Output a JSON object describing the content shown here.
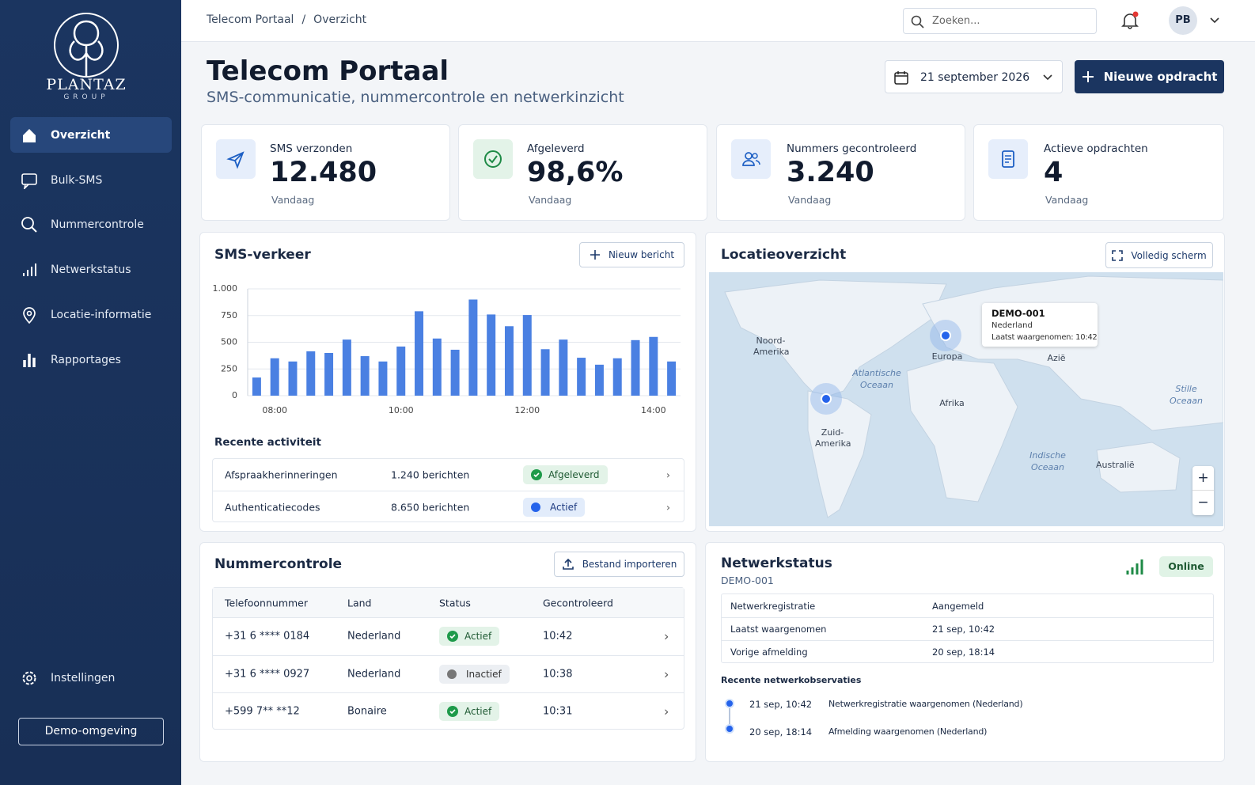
{
  "sidebar": {
    "brand": "PLANTAZ",
    "brand_sub": "GROUP",
    "nav": [
      "Overzicht",
      "Bulk-SMS",
      "Nummercontrole",
      "Netwerkstatus",
      "Locatie-informatie",
      "Rapportages"
    ],
    "settings": "Instellingen",
    "environment": "Demo-omgeving"
  },
  "topbar": {
    "breadcrumb": [
      "Telecom Portaal",
      "Overzicht"
    ],
    "breadcrumb_separator": "/",
    "search_placeholder": "Zoeken...",
    "user_initials": "PB"
  },
  "header": {
    "title": "Telecom Portaal",
    "subtitle": "SMS-communicatie, nummercontrole en netwerkinzicht",
    "date": "21 september 2026",
    "new_button": "Nieuwe opdracht"
  },
  "kpis": [
    {
      "label": "SMS verzonden",
      "value": "12.480",
      "period": "Vandaag"
    },
    {
      "label": "Afgeleverd",
      "value": "98,6%",
      "period": "Vandaag"
    },
    {
      "label": "Nummers gecontroleerd",
      "value": "3.240",
      "period": "Vandaag"
    },
    {
      "label": "Actieve opdrachten",
      "value": "4",
      "period": "Vandaag"
    }
  ],
  "sms_traffic": {
    "title": "SMS-verkeer",
    "button": "Nieuw bericht",
    "chart": {
      "type": "bar",
      "categories": [
        null,
        "08:00",
        null,
        null,
        null,
        null,
        null,
        null,
        "10:00",
        null,
        null,
        null,
        null,
        null,
        null,
        "12:00",
        null,
        null,
        null,
        null,
        null,
        null,
        "14:00",
        null
      ],
      "values": [
        170,
        350,
        320,
        415,
        400,
        525,
        370,
        320,
        460,
        790,
        535,
        430,
        900,
        760,
        650,
        755,
        435,
        525,
        355,
        290,
        350,
        520,
        550,
        320
      ],
      "color": "#4a80e2",
      "ylim": [
        0,
        1000
      ],
      "yticks": [
        0,
        250,
        500,
        750,
        {
          "value": 1000,
          "label": "1.000"
        }
      ],
      "grid": true
    },
    "recent_title": "Recente activiteit",
    "recent": [
      {
        "name": "Afspraakherinneringen",
        "count": "1.240 berichten",
        "status": "Afgeleverd"
      },
      {
        "name": "Authenticatiecodes",
        "count": "8.650 berichten",
        "status": "Actief"
      }
    ]
  },
  "location": {
    "title": "Locatieoverzicht",
    "button": "Volledig scherm",
    "labels": [
      [
        "Noord-",
        "Amerika"
      ],
      [
        "Europa"
      ],
      [
        "Azië"
      ],
      [
        "Afrika"
      ],
      [
        "Zuid-",
        "Amerika"
      ],
      [
        "Australië"
      ]
    ],
    "oceans": [
      [
        "Atlantische",
        "Oceaan"
      ],
      [
        "Stille",
        "Oceaan"
      ],
      [
        "Indische",
        "Oceaan"
      ]
    ],
    "tooltip": {
      "device": "DEMO-001",
      "country": "Nederland",
      "last_seen": "Laatst waargenomen: 10:42"
    },
    "zoom_in": "+",
    "zoom_out": "−"
  },
  "number_check": {
    "title": "Nummercontrole",
    "button": "Bestand importeren",
    "columns": [
      "Telefoonnummer",
      "Land",
      "Status",
      "Gecontroleerd"
    ],
    "rows": [
      [
        "+31 6 **** 0184",
        "Nederland",
        "Actief",
        "10:42"
      ],
      [
        "+31 6 **** 0927",
        "Nederland",
        "Inactief",
        "10:38"
      ],
      [
        "+599 7** **12",
        "Bonaire",
        "Actief",
        "10:31"
      ]
    ]
  },
  "network": {
    "title": "Netwerkstatus",
    "device": "DEMO-001",
    "status": "Online",
    "rows": [
      [
        "Netwerkregistratie",
        "Aangemeld"
      ],
      [
        "Laatst waargenomen",
        "21 sep, 10:42"
      ],
      [
        "Vorige afmelding",
        "20 sep, 18:14"
      ]
    ],
    "observations_title": "Recente netwerkobservaties",
    "observations": [
      [
        "21 sep, 10:42",
        "Netwerkregistratie waargenomen (Nederland)"
      ],
      [
        "20 sep, 18:14",
        "Afmelding waargenomen (Nederland)"
      ]
    ]
  }
}
